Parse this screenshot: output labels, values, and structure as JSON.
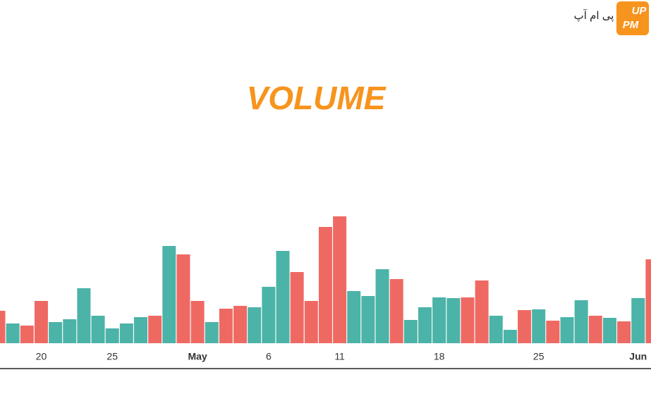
{
  "chart_data": {
    "type": "bar",
    "title": "VOLUME",
    "categories": [
      null,
      null,
      null,
      "20",
      null,
      null,
      null,
      null,
      "25",
      null,
      null,
      null,
      null,
      null,
      "May",
      null,
      null,
      null,
      null,
      "6",
      null,
      null,
      null,
      null,
      "11",
      null,
      null,
      null,
      null,
      null,
      null,
      "18",
      null,
      null,
      null,
      null,
      null,
      null,
      "25",
      null,
      null,
      null,
      null,
      null,
      null,
      "Jun",
      null
    ],
    "values": [
      46,
      28,
      25,
      60,
      30,
      34,
      78,
      39,
      21,
      28,
      37,
      39,
      138,
      126,
      60,
      30,
      49,
      53,
      51,
      80,
      131,
      101,
      60,
      165,
      180,
      74,
      67,
      105,
      91,
      33,
      51,
      65,
      64,
      65,
      89,
      39,
      19,
      47,
      48,
      32,
      37,
      61,
      39,
      36,
      31,
      64,
      119
    ],
    "colors": [
      "#ef6963",
      "#4cb3a8",
      "#ef6963",
      "#ef6963",
      "#4cb3a8",
      "#4cb3a8",
      "#4cb3a8",
      "#4cb3a8",
      "#4cb3a8",
      "#4cb3a8",
      "#4cb3a8",
      "#ef6963",
      "#4cb3a8",
      "#ef6963",
      "#ef6963",
      "#4cb3a8",
      "#ef6963",
      "#ef6963",
      "#4cb3a8",
      "#4cb3a8",
      "#4cb3a8",
      "#ef6963",
      "#ef6963",
      "#ef6963",
      "#ef6963",
      "#4cb3a8",
      "#4cb3a8",
      "#4cb3a8",
      "#ef6963",
      "#4cb3a8",
      "#4cb3a8",
      "#4cb3a8",
      "#4cb3a8",
      "#ef6963",
      "#ef6963",
      "#4cb3a8",
      "#4cb3a8",
      "#ef6963",
      "#4cb3a8",
      "#ef6963",
      "#4cb3a8",
      "#4cb3a8",
      "#ef6963",
      "#4cb3a8",
      "#ef6963",
      "#4cb3a8",
      "#ef6963"
    ],
    "ylim": [
      0,
      487
    ]
  },
  "watermark": {
    "text": "پی ام آپ",
    "logo_top": "UP",
    "logo_bottom": "PM"
  }
}
